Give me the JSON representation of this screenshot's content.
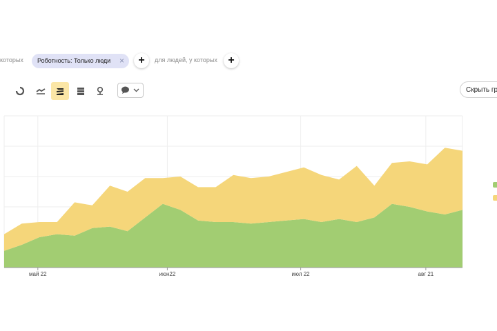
{
  "filters": {
    "prefix_text": "которых",
    "chip_label": "Роботность: Только люди",
    "chip_close": "×",
    "for_people_text": "для людей, у которых",
    "add_symbol": "+"
  },
  "toolbar": {
    "tools": [
      {
        "icon": "pie-chart-icon",
        "active": false
      },
      {
        "icon": "line-chart-icon",
        "active": false
      },
      {
        "icon": "stacked-area-icon",
        "active": true
      },
      {
        "icon": "stacked-bar-icon",
        "active": false
      },
      {
        "icon": "map-icon",
        "active": false
      }
    ],
    "type_select_icon": "speech-bubble-icon"
  },
  "hide_button_label": "Скрыть гр",
  "colors": {
    "green": "#a2cd72",
    "yellow": "#f5d67a",
    "grid": "#eeeeee",
    "axis": "#9a9a9a"
  },
  "chart_data": {
    "type": "area",
    "stacked": true,
    "x_tick_labels": [
      "май 22",
      "июн22",
      "июл 22",
      "авг 21"
    ],
    "grid": true,
    "series": [
      {
        "color": "#a2cd72",
        "values": [
          0.11,
          0.15,
          0.2,
          0.22,
          0.21,
          0.26,
          0.27,
          0.24,
          0.33,
          0.42,
          0.38,
          0.31,
          0.3,
          0.3,
          0.29,
          0.3,
          0.31,
          0.32,
          0.3,
          0.32,
          0.3,
          0.33,
          0.42,
          0.4,
          0.37,
          0.35,
          0.38
        ]
      },
      {
        "color": "#f5d67a",
        "values": [
          0.11,
          0.14,
          0.1,
          0.08,
          0.22,
          0.15,
          0.27,
          0.26,
          0.26,
          0.17,
          0.22,
          0.22,
          0.23,
          0.31,
          0.3,
          0.3,
          0.32,
          0.34,
          0.31,
          0.26,
          0.37,
          0.21,
          0.27,
          0.3,
          0.31,
          0.44,
          0.39
        ]
      }
    ]
  }
}
